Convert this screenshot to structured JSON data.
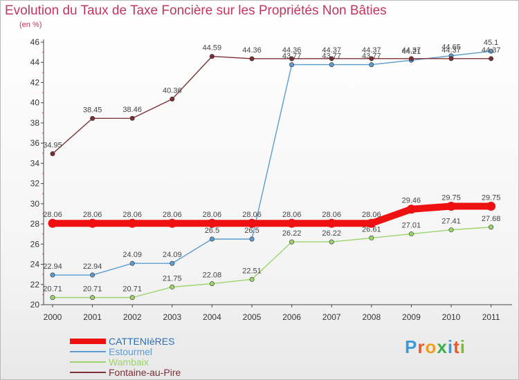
{
  "title": "Evolution du Taux de Taxe Foncière sur les Propriétés Non Bâties",
  "unit_label": "(en %)",
  "brand": {
    "text": "Proxiti",
    "letters": [
      {
        "ch": "P",
        "color": "#3d9ad8"
      },
      {
        "ch": "r",
        "color": "#e65b2c"
      },
      {
        "ch": "o",
        "color": "#f0a020"
      },
      {
        "ch": "x",
        "color": "#3fae49"
      },
      {
        "ch": "i",
        "color": "#3d9ad8"
      },
      {
        "ch": "t",
        "color": "#e65b2c"
      },
      {
        "ch": "i",
        "color": "#7dbb36"
      }
    ]
  },
  "chart_data": {
    "type": "line",
    "title": "Evolution du Taux de Taxe Foncière sur les Propriétés Non Bâties",
    "ylabel": "(en %)",
    "xlabel": "",
    "ylim": [
      20,
      46
    ],
    "yticks": [
      20,
      22,
      24,
      26,
      28,
      30,
      32,
      34,
      36,
      38,
      40,
      42,
      44,
      46
    ],
    "x": [
      "2000",
      "2001",
      "2002",
      "2003",
      "2004",
      "2005",
      "2006",
      "2007",
      "2008",
      "2009",
      "2010",
      "2011"
    ],
    "grid": false,
    "legend_position": "bottom-left",
    "series": [
      {
        "name": "CATTENIèRES",
        "color": "#ee1111",
        "values": [
          28.06,
          28.06,
          28.06,
          28.06,
          28.06,
          28.06,
          28.06,
          28.06,
          28.06,
          29.46,
          29.75,
          29.75
        ],
        "labels": [
          "28.06",
          "28.06",
          "28.06",
          "28.06",
          "28.06",
          "28.06",
          "28.06",
          "28.06",
          "28.06",
          "29.46",
          "29.75",
          "29.75"
        ]
      },
      {
        "name": "Estourmel",
        "color": "#5b9bd0",
        "values": [
          22.94,
          22.94,
          24.09,
          24.09,
          26.5,
          26.5,
          43.77,
          43.77,
          43.77,
          44.21,
          44.65,
          45.1
        ],
        "labels": [
          "22.94",
          "22.94",
          "24.09",
          "24.09",
          "26.5",
          "26.5",
          "43.77",
          "43.77",
          "43.77",
          "44.21",
          "44.65",
          "45.1"
        ]
      },
      {
        "name": "Wambaix",
        "color": "#9ad46a",
        "values": [
          20.71,
          20.71,
          20.71,
          21.75,
          22.08,
          22.51,
          26.22,
          26.22,
          26.61,
          27.01,
          27.41,
          27.68
        ],
        "labels": [
          "20.71",
          "20.71",
          "20.71",
          "21.75",
          "22.08",
          "22.51",
          "26.22",
          "26.22",
          "26.61",
          "27.01",
          "27.41",
          "27.68"
        ]
      },
      {
        "name": "Fontaine-au-Pire",
        "color": "#7b2e35",
        "values": [
          34.95,
          38.45,
          38.46,
          40.36,
          44.59,
          44.36,
          44.36,
          44.37,
          44.37,
          44.37,
          44.37,
          44.37
        ],
        "labels": [
          "34.95",
          "38.45",
          "38.46",
          "40.36",
          "44.59",
          "44.36",
          "44.36",
          "44.37",
          "44.37",
          "44.37",
          "44.37",
          "44.37"
        ]
      }
    ]
  }
}
